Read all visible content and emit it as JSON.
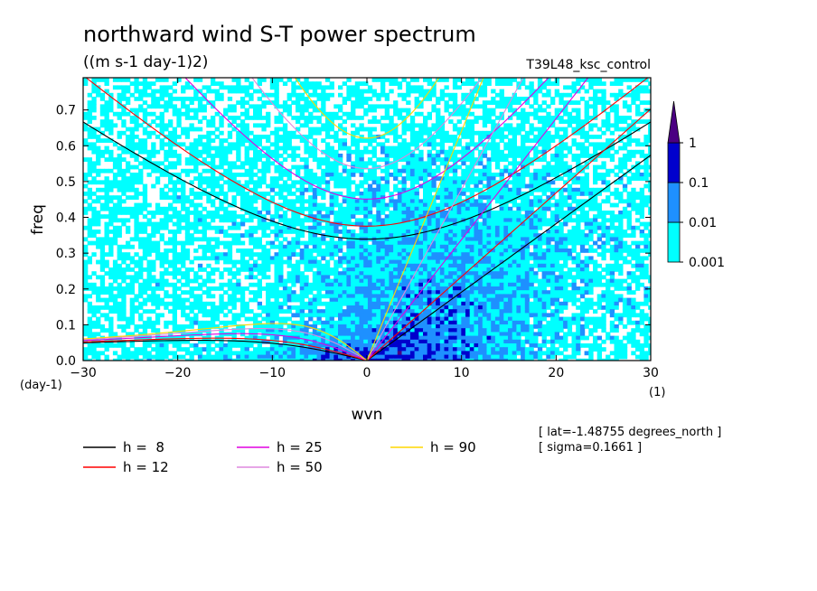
{
  "chart_data": {
    "type": "heatmap",
    "title": "northward wind S-T power spectrum",
    "subtitle": "((m s-1 day-1)2)",
    "run_label": "T39L48_ksc_control",
    "xlabel": "wvn",
    "ylabel": "freq",
    "x_unit": "(1)",
    "y_unit": "(day-1)",
    "xlim": [
      -30,
      30
    ],
    "ylim": [
      0,
      0.79
    ],
    "x_ticks": [
      -30,
      -20,
      -10,
      0,
      10,
      20,
      30
    ],
    "y_ticks": [
      0.0,
      0.1,
      0.2,
      0.3,
      0.4,
      0.5,
      0.6,
      0.7
    ],
    "colorbar": {
      "levels": [
        0.001,
        0.01,
        0.1,
        1
      ],
      "labels": [
        "0.001",
        "0.01",
        "0.1",
        "1"
      ],
      "colors": [
        "#00ffff",
        "#1e90ff",
        "#0000cd",
        "#4b0082"
      ]
    },
    "info": [
      "[ lat=-1.48755 degrees_north ]",
      "[ sigma=0.1661 ]"
    ],
    "dispersion_curves": [
      {
        "name": "h =  8",
        "h": 8,
        "color": "#000000"
      },
      {
        "name": "h = 12",
        "h": 12,
        "color": "#ff0000"
      },
      {
        "name": "h = 25",
        "h": 25,
        "color": "#e000e0"
      },
      {
        "name": "h = 50",
        "h": 50,
        "color": "#dd88dd"
      },
      {
        "name": "h = 90",
        "h": 90,
        "color": "#ffd700"
      }
    ]
  }
}
